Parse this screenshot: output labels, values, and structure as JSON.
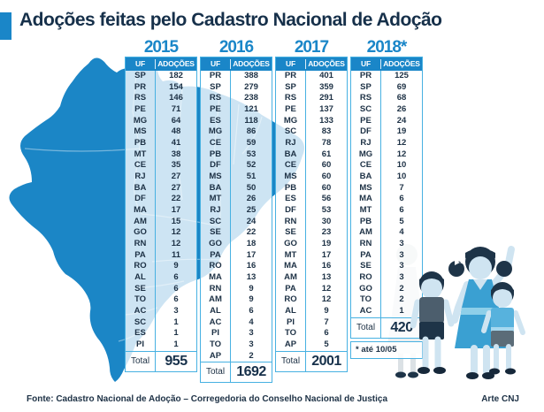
{
  "title": "Adoções feitas pelo Cadastro Nacional de Adoção",
  "colors": {
    "accent_blue": "#1a86c8",
    "border_blue": "#47b1e2",
    "navy_text": "#16304a",
    "map_blue": "#1b86c6"
  },
  "tables": [
    {
      "year": "2015",
      "col_uf": "UF",
      "col_adocoes": "ADOÇÕES",
      "rows": [
        [
          "SP",
          182
        ],
        [
          "PR",
          154
        ],
        [
          "RS",
          146
        ],
        [
          "PE",
          71
        ],
        [
          "MG",
          64
        ],
        [
          "MS",
          48
        ],
        [
          "PB",
          41
        ],
        [
          "MT",
          38
        ],
        [
          "CE",
          35
        ],
        [
          "RJ",
          27
        ],
        [
          "BA",
          27
        ],
        [
          "DF",
          22
        ],
        [
          "MA",
          17
        ],
        [
          "AM",
          15
        ],
        [
          "GO",
          12
        ],
        [
          "RN",
          12
        ],
        [
          "PA",
          11
        ],
        [
          "RO",
          9
        ],
        [
          "AL",
          6
        ],
        [
          "SE",
          6
        ],
        [
          "TO",
          6
        ],
        [
          "AC",
          3
        ],
        [
          "SC",
          1
        ],
        [
          "ES",
          1
        ],
        [
          "PI",
          1
        ]
      ],
      "total_label": "Total",
      "total": "955"
    },
    {
      "year": "2016",
      "col_uf": "UF",
      "col_adocoes": "ADOÇÕES",
      "rows": [
        [
          "PR",
          388
        ],
        [
          "SP",
          279
        ],
        [
          "RS",
          238
        ],
        [
          "PE",
          121
        ],
        [
          "ES",
          118
        ],
        [
          "MG",
          86
        ],
        [
          "CE",
          59
        ],
        [
          "PB",
          53
        ],
        [
          "DF",
          52
        ],
        [
          "MS",
          51
        ],
        [
          "BA",
          50
        ],
        [
          "MT",
          26
        ],
        [
          "RJ",
          25
        ],
        [
          "SC",
          24
        ],
        [
          "SE",
          22
        ],
        [
          "GO",
          18
        ],
        [
          "PA",
          17
        ],
        [
          "RO",
          16
        ],
        [
          "MA",
          13
        ],
        [
          "RN",
          9
        ],
        [
          "AM",
          9
        ],
        [
          "AL",
          6
        ],
        [
          "AC",
          4
        ],
        [
          "PI",
          3
        ],
        [
          "TO",
          3
        ],
        [
          "AP",
          2
        ]
      ],
      "total_label": "Total",
      "total": "1692"
    },
    {
      "year": "2017",
      "col_uf": "UF",
      "col_adocoes": "ADOÇÕES",
      "rows": [
        [
          "PR",
          401
        ],
        [
          "SP",
          359
        ],
        [
          "RS",
          291
        ],
        [
          "PE",
          137
        ],
        [
          "MG",
          133
        ],
        [
          "SC",
          83
        ],
        [
          "RJ",
          78
        ],
        [
          "BA",
          61
        ],
        [
          "CE",
          60
        ],
        [
          "MS",
          60
        ],
        [
          "PB",
          60
        ],
        [
          "ES",
          56
        ],
        [
          "DF",
          53
        ],
        [
          "RN",
          30
        ],
        [
          "SE",
          23
        ],
        [
          "GO",
          19
        ],
        [
          "MT",
          17
        ],
        [
          "MA",
          16
        ],
        [
          "AM",
          13
        ],
        [
          "PA",
          12
        ],
        [
          "RO",
          12
        ],
        [
          "AL",
          9
        ],
        [
          "PI",
          7
        ],
        [
          "TO",
          6
        ],
        [
          "AP",
          5
        ]
      ],
      "total_label": "Total",
      "total": "2001"
    },
    {
      "year": "2018*",
      "col_uf": "UF",
      "col_adocoes": "ADOÇÕES",
      "rows": [
        [
          "PR",
          125
        ],
        [
          "SP",
          69
        ],
        [
          "RS",
          68
        ],
        [
          "SC",
          26
        ],
        [
          "PE",
          24
        ],
        [
          "DF",
          19
        ],
        [
          "RJ",
          12
        ],
        [
          "MG",
          12
        ],
        [
          "CE",
          10
        ],
        [
          "BA",
          10
        ],
        [
          "MS",
          7
        ],
        [
          "MA",
          6
        ],
        [
          "MT",
          6
        ],
        [
          "PB",
          5
        ],
        [
          "AM",
          4
        ],
        [
          "RN",
          3
        ],
        [
          "PA",
          3
        ],
        [
          "SE",
          3
        ],
        [
          "RO",
          3
        ],
        [
          "GO",
          2
        ],
        [
          "TO",
          2
        ],
        [
          "AC",
          1
        ]
      ],
      "total_label": "Total",
      "total": "420",
      "footnote": "* até 10/05"
    }
  ],
  "footer": {
    "source": "Fonte: Cadastro Nacional de Adoção – Corregedoria do Conselho Nacional de Justiça",
    "credit": "Arte CNJ"
  },
  "chart_data": [
    {
      "type": "table",
      "title": "Adoções 2015",
      "columns": [
        "UF",
        "ADOÇÕES"
      ],
      "rows": [
        [
          "SP",
          182
        ],
        [
          "PR",
          154
        ],
        [
          "RS",
          146
        ],
        [
          "PE",
          71
        ],
        [
          "MG",
          64
        ],
        [
          "MS",
          48
        ],
        [
          "PB",
          41
        ],
        [
          "MT",
          38
        ],
        [
          "CE",
          35
        ],
        [
          "RJ",
          27
        ],
        [
          "BA",
          27
        ],
        [
          "DF",
          22
        ],
        [
          "MA",
          17
        ],
        [
          "AM",
          15
        ],
        [
          "GO",
          12
        ],
        [
          "RN",
          12
        ],
        [
          "PA",
          11
        ],
        [
          "RO",
          9
        ],
        [
          "AL",
          6
        ],
        [
          "SE",
          6
        ],
        [
          "TO",
          6
        ],
        [
          "AC",
          3
        ],
        [
          "SC",
          1
        ],
        [
          "ES",
          1
        ],
        [
          "PI",
          1
        ]
      ],
      "total": 955
    },
    {
      "type": "table",
      "title": "Adoções 2016",
      "columns": [
        "UF",
        "ADOÇÕES"
      ],
      "rows": [
        [
          "PR",
          388
        ],
        [
          "SP",
          279
        ],
        [
          "RS",
          238
        ],
        [
          "PE",
          121
        ],
        [
          "ES",
          118
        ],
        [
          "MG",
          86
        ],
        [
          "CE",
          59
        ],
        [
          "PB",
          53
        ],
        [
          "DF",
          52
        ],
        [
          "MS",
          51
        ],
        [
          "BA",
          50
        ],
        [
          "MT",
          26
        ],
        [
          "RJ",
          25
        ],
        [
          "SC",
          24
        ],
        [
          "SE",
          22
        ],
        [
          "GO",
          18
        ],
        [
          "PA",
          17
        ],
        [
          "RO",
          16
        ],
        [
          "MA",
          13
        ],
        [
          "RN",
          9
        ],
        [
          "AM",
          9
        ],
        [
          "AL",
          6
        ],
        [
          "AC",
          4
        ],
        [
          "PI",
          3
        ],
        [
          "TO",
          3
        ],
        [
          "AP",
          2
        ]
      ],
      "total": 1692
    },
    {
      "type": "table",
      "title": "Adoções 2017",
      "columns": [
        "UF",
        "ADOÇÕES"
      ],
      "rows": [
        [
          "PR",
          401
        ],
        [
          "SP",
          359
        ],
        [
          "RS",
          291
        ],
        [
          "PE",
          137
        ],
        [
          "MG",
          133
        ],
        [
          "SC",
          83
        ],
        [
          "RJ",
          78
        ],
        [
          "BA",
          61
        ],
        [
          "CE",
          60
        ],
        [
          "MS",
          60
        ],
        [
          "PB",
          60
        ],
        [
          "ES",
          56
        ],
        [
          "DF",
          53
        ],
        [
          "RN",
          30
        ],
        [
          "SE",
          23
        ],
        [
          "GO",
          19
        ],
        [
          "MT",
          17
        ],
        [
          "MA",
          16
        ],
        [
          "AM",
          13
        ],
        [
          "PA",
          12
        ],
        [
          "RO",
          12
        ],
        [
          "AL",
          9
        ],
        [
          "PI",
          7
        ],
        [
          "TO",
          6
        ],
        [
          "AP",
          5
        ]
      ],
      "total": 2001
    },
    {
      "type": "table",
      "title": "Adoções 2018 (até 10/05)",
      "columns": [
        "UF",
        "ADOÇÕES"
      ],
      "rows": [
        [
          "PR",
          125
        ],
        [
          "SP",
          69
        ],
        [
          "RS",
          68
        ],
        [
          "SC",
          26
        ],
        [
          "PE",
          24
        ],
        [
          "DF",
          19
        ],
        [
          "RJ",
          12
        ],
        [
          "MG",
          12
        ],
        [
          "CE",
          10
        ],
        [
          "BA",
          10
        ],
        [
          "MS",
          7
        ],
        [
          "MA",
          6
        ],
        [
          "MT",
          6
        ],
        [
          "PB",
          5
        ],
        [
          "AM",
          4
        ],
        [
          "RN",
          3
        ],
        [
          "PA",
          3
        ],
        [
          "SE",
          3
        ],
        [
          "RO",
          3
        ],
        [
          "GO",
          2
        ],
        [
          "TO",
          2
        ],
        [
          "AC",
          1
        ]
      ],
      "total": 420
    }
  ]
}
